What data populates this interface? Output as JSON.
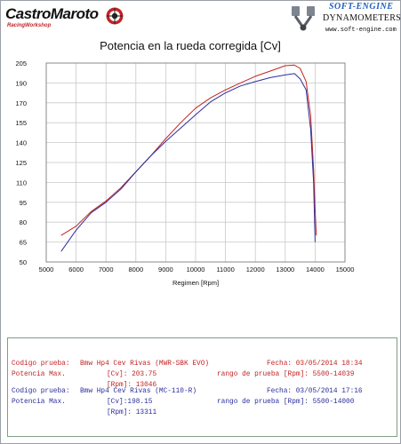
{
  "header": {
    "left_logo": "CastroMaroto",
    "left_logo_sub": "RacingWorkshop",
    "right_logo_title": "SOFT-ENGINE",
    "right_logo_subtitle": "DYNAMOMETERS",
    "right_logo_url": "www.soft-engine.com",
    "right_emblem_text": "SOFT-ENGINE"
  },
  "colors": {
    "series1": "#c32323",
    "series2": "#2b2f9c",
    "grid": "#c9c9c9",
    "legend_border": "#7d9f86"
  },
  "chart_data": {
    "type": "line",
    "title": "Potencia en la rueda corregida [Cv]",
    "xlabel": "Regimen [Rpm]",
    "ylabel": "",
    "xlim": [
      5000,
      15000
    ],
    "ylim": [
      50,
      205
    ],
    "xticks": [
      5000,
      6000,
      7000,
      8000,
      9000,
      10000,
      11000,
      12000,
      13000,
      14000,
      15000
    ],
    "yticks": [
      50,
      65,
      80,
      95,
      110,
      125,
      140,
      155,
      170,
      190,
      205
    ],
    "grid": true,
    "series": [
      {
        "name": "Bmw Hp4 Cev Rivas (MWR-SBK EVO)",
        "color": "#c32323",
        "x": [
          5500,
          6000,
          6500,
          7000,
          7500,
          8000,
          8500,
          9000,
          9500,
          10000,
          10500,
          11000,
          11500,
          12000,
          12500,
          13000,
          13300,
          13500,
          13700,
          13850,
          13950,
          14000,
          14039
        ],
        "y": [
          70,
          77,
          88,
          96,
          106,
          118,
          130,
          143,
          155,
          166,
          175,
          183,
          190,
          195,
          199,
          203,
          203.5,
          201,
          191,
          160,
          120,
          90,
          70
        ]
      },
      {
        "name": "Bmw Hp4 Cev Rivas (MC-110-R)",
        "color": "#2b2f9c",
        "x": [
          5500,
          6000,
          6500,
          7000,
          7500,
          8000,
          8500,
          9000,
          9500,
          10000,
          10500,
          11000,
          11500,
          12000,
          12500,
          13000,
          13311,
          13500,
          13700,
          13850,
          13950,
          14000
        ],
        "y": [
          58,
          74,
          87,
          95,
          105,
          118,
          130,
          141,
          151,
          161,
          171,
          180,
          187,
          191,
          194,
          196,
          197,
          193,
          183,
          150,
          110,
          65
        ]
      }
    ]
  },
  "legend": {
    "entries": [
      {
        "codigo_label": "Codigo prueba:",
        "codigo_value": "Bmw Hp4 Cev Rivas (MWR-SBK EVO)",
        "fecha": "Fecha: 03/05/2014 18:34",
        "potencia_label": "Potencia Max.",
        "cv": "[Cv]: 203.75",
        "rango": "rango de prueba [Rpm]: 5500-14039",
        "rpm": "[Rpm]: 13046"
      },
      {
        "codigo_label": "Codigo prueba:",
        "codigo_value": "Bmw Hp4 Cev Rivas (MC-110-R)",
        "fecha": "Fecha: 03/05/2014 17:16",
        "potencia_label": "Potencia Max.",
        "cv": "[Cv]:198.15",
        "rango": "rango de prueba [Rpm]: 5500-14000",
        "rpm": "[Rpm]: 13311"
      }
    ]
  }
}
